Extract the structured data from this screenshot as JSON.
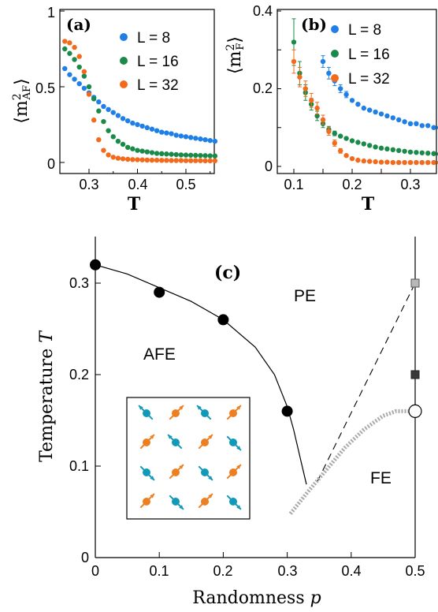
{
  "colors": {
    "blue": "#1e7fe6",
    "green": "#1a8a4a",
    "orange": "#f26a1b",
    "spin_cyan": "#1199b8",
    "spin_orange": "#ee7f21"
  },
  "chart_data": [
    {
      "type": "scatter",
      "panel": "(a)",
      "ylabel": "⟨m²_AF⟩",
      "xlabel": "T",
      "xlim": [
        0.24,
        0.56
      ],
      "ylim": [
        -0.05,
        1.0
      ],
      "xticks": [
        "0.3",
        "0.4",
        "0.5"
      ],
      "yticks": [
        "0",
        "0.5",
        "1"
      ],
      "legend": "top-right",
      "series": [
        {
          "name": "L = 8",
          "color": "#1e7fe6",
          "x": [
            0.25,
            0.26,
            0.27,
            0.28,
            0.29,
            0.3,
            0.31,
            0.32,
            0.33,
            0.34,
            0.35,
            0.36,
            0.37,
            0.38,
            0.39,
            0.4,
            0.41,
            0.42,
            0.43,
            0.44,
            0.45,
            0.46,
            0.47,
            0.48,
            0.49,
            0.5,
            0.51,
            0.52,
            0.53,
            0.54,
            0.55,
            0.56
          ],
          "y": [
            0.62,
            0.58,
            0.55,
            0.52,
            0.49,
            0.46,
            0.43,
            0.4,
            0.37,
            0.35,
            0.33,
            0.31,
            0.29,
            0.275,
            0.26,
            0.25,
            0.24,
            0.23,
            0.22,
            0.21,
            0.2,
            0.195,
            0.19,
            0.18,
            0.175,
            0.17,
            0.165,
            0.16,
            0.155,
            0.15,
            0.145,
            0.14
          ]
        },
        {
          "name": "L = 16",
          "color": "#1a8a4a",
          "x": [
            0.25,
            0.26,
            0.27,
            0.28,
            0.29,
            0.3,
            0.31,
            0.32,
            0.33,
            0.34,
            0.35,
            0.36,
            0.37,
            0.38,
            0.39,
            0.4,
            0.41,
            0.42,
            0.43,
            0.44,
            0.45,
            0.46,
            0.47,
            0.48,
            0.49,
            0.5,
            0.51,
            0.52,
            0.53,
            0.54,
            0.55,
            0.56
          ],
          "y": [
            0.75,
            0.72,
            0.68,
            0.63,
            0.57,
            0.5,
            0.42,
            0.34,
            0.27,
            0.21,
            0.17,
            0.14,
            0.12,
            0.1,
            0.09,
            0.08,
            0.075,
            0.07,
            0.065,
            0.06,
            0.058,
            0.056,
            0.054,
            0.052,
            0.05,
            0.049,
            0.048,
            0.047,
            0.046,
            0.045,
            0.044,
            0.043
          ]
        },
        {
          "name": "L = 32",
          "color": "#f26a1b",
          "x": [
            0.25,
            0.26,
            0.27,
            0.28,
            0.29,
            0.3,
            0.31,
            0.32,
            0.33,
            0.34,
            0.35,
            0.36,
            0.37,
            0.38,
            0.39,
            0.4,
            0.41,
            0.42,
            0.43,
            0.44,
            0.45,
            0.46,
            0.47,
            0.48,
            0.49,
            0.5,
            0.51,
            0.52,
            0.53,
            0.54,
            0.55,
            0.56
          ],
          "y": [
            0.8,
            0.79,
            0.76,
            0.7,
            0.6,
            0.45,
            0.28,
            0.15,
            0.08,
            0.05,
            0.035,
            0.028,
            0.024,
            0.021,
            0.019,
            0.018,
            0.017,
            0.016,
            0.015,
            0.015,
            0.014,
            0.014,
            0.013,
            0.013,
            0.013,
            0.012,
            0.012,
            0.012,
            0.012,
            0.011,
            0.011,
            0.011
          ]
        }
      ]
    },
    {
      "type": "scatter",
      "panel": "(b)",
      "ylabel": "⟨m²_F⟩",
      "xlabel": "T",
      "xlim": [
        0.08,
        0.35
      ],
      "ylim": [
        -0.005,
        0.4
      ],
      "xticks": [
        "0.1",
        "0.2",
        "0.3"
      ],
      "yticks": [
        "0",
        "0.2",
        "0.4"
      ],
      "legend": "top-right",
      "series": [
        {
          "name": "L = 8",
          "color": "#1e7fe6",
          "x": [
            0.15,
            0.16,
            0.17,
            0.18,
            0.19,
            0.2,
            0.21,
            0.22,
            0.23,
            0.24,
            0.25,
            0.26,
            0.27,
            0.28,
            0.29,
            0.3,
            0.31,
            0.32,
            0.33,
            0.34,
            0.35
          ],
          "y": [
            0.27,
            0.24,
            0.22,
            0.2,
            0.185,
            0.17,
            0.16,
            0.15,
            0.145,
            0.14,
            0.135,
            0.13,
            0.125,
            0.12,
            0.115,
            0.11,
            0.11,
            0.105,
            0.105,
            0.1,
            0.1
          ],
          "err": [
            0.015,
            0.015,
            0.012,
            0.01,
            0.008,
            0,
            0,
            0,
            0,
            0,
            0,
            0,
            0,
            0,
            0,
            0,
            0,
            0,
            0,
            0,
            0
          ]
        },
        {
          "name": "L = 16",
          "color": "#1a8a4a",
          "x": [
            0.1,
            0.11,
            0.12,
            0.13,
            0.14,
            0.15,
            0.16,
            0.17,
            0.18,
            0.19,
            0.2,
            0.21,
            0.22,
            0.23,
            0.24,
            0.25,
            0.26,
            0.27,
            0.28,
            0.29,
            0.3,
            0.31,
            0.32,
            0.33,
            0.34,
            0.35
          ],
          "y": [
            0.32,
            0.24,
            0.19,
            0.16,
            0.13,
            0.11,
            0.095,
            0.085,
            0.078,
            0.072,
            0.066,
            0.062,
            0.058,
            0.054,
            0.05,
            0.047,
            0.045,
            0.043,
            0.041,
            0.039,
            0.037,
            0.036,
            0.035,
            0.034,
            0.033,
            0.032
          ],
          "err": [
            0.06,
            0.03,
            0.02,
            0.015,
            0.012,
            0.01,
            0.008,
            0.006,
            0,
            0,
            0,
            0,
            0,
            0,
            0,
            0,
            0,
            0,
            0,
            0,
            0,
            0,
            0,
            0,
            0,
            0
          ]
        },
        {
          "name": "L = 32",
          "color": "#f26a1b",
          "x": [
            0.1,
            0.11,
            0.12,
            0.13,
            0.14,
            0.15,
            0.16,
            0.17,
            0.18,
            0.19,
            0.2,
            0.21,
            0.22,
            0.23,
            0.24,
            0.25,
            0.26,
            0.27,
            0.28,
            0.29,
            0.3,
            0.31,
            0.32,
            0.33,
            0.34,
            0.35
          ],
          "y": [
            0.27,
            0.23,
            0.2,
            0.17,
            0.15,
            0.12,
            0.09,
            0.06,
            0.04,
            0.028,
            0.02,
            0.016,
            0.014,
            0.013,
            0.012,
            0.011,
            0.011,
            0.01,
            0.01,
            0.01,
            0.01,
            0.01,
            0.01,
            0.01,
            0.01,
            0.01
          ],
          "err": [
            0.03,
            0.025,
            0.02,
            0.018,
            0.015,
            0.012,
            0.01,
            0.008,
            0.006,
            0,
            0,
            0,
            0,
            0,
            0,
            0,
            0,
            0,
            0,
            0,
            0,
            0,
            0,
            0,
            0,
            0
          ]
        }
      ]
    },
    {
      "type": "line",
      "panel": "(c)",
      "xlabel": "Randomness p",
      "ylabel": "Temperature T",
      "xlim": [
        0,
        0.5
      ],
      "ylim": [
        0,
        0.35
      ],
      "xticks": [
        "0",
        "0.1",
        "0.2",
        "0.3",
        "0.4",
        "0.5"
      ],
      "yticks": [
        "0",
        "0.1",
        "0.2",
        "0.3"
      ],
      "regions": [
        "PE",
        "AFE",
        "FE"
      ],
      "afe_boundary_points": {
        "x": [
          0,
          0.1,
          0.2,
          0.3
        ],
        "y": [
          0.32,
          0.29,
          0.26,
          0.16
        ]
      },
      "afe_boundary_curve": {
        "x": [
          0,
          0.05,
          0.1,
          0.15,
          0.2,
          0.25,
          0.28,
          0.3,
          0.31,
          0.32,
          0.325,
          0.33
        ],
        "y": [
          0.32,
          0.31,
          0.295,
          0.28,
          0.26,
          0.23,
          0.2,
          0.165,
          0.14,
          0.11,
          0.095,
          0.08
        ]
      },
      "dashed_line": {
        "x": [
          0.33,
          0.5
        ],
        "y": [
          0.08,
          0.3
        ]
      },
      "fe_boundary_dotted": {
        "x": [
          0.305,
          0.33,
          0.36,
          0.39,
          0.42,
          0.45,
          0.47,
          0.49,
          0.5
        ],
        "y": [
          0.048,
          0.07,
          0.095,
          0.12,
          0.14,
          0.155,
          0.16,
          0.16,
          0.16
        ]
      },
      "end_markers": [
        {
          "x": 0.5,
          "y": 0.3,
          "kind": "light-square"
        },
        {
          "x": 0.5,
          "y": 0.2,
          "kind": "dark-square"
        },
        {
          "x": 0.5,
          "y": 0.16,
          "kind": "open-circle"
        }
      ]
    }
  ],
  "panel_a_label": "(a)",
  "panel_b_label": "(b)",
  "panel_c_label": "(c)",
  "a_ylabel_base": "⟨m",
  "a_ylabel_sup": "2",
  "a_ylabel_sub": "AF",
  "a_ylabel_close": "⟩",
  "b_ylabel_base": "⟨m",
  "b_ylabel_sup": "2",
  "b_ylabel_sub": "F",
  "b_ylabel_close": "⟩",
  "a_xlabel": "T",
  "b_xlabel": "T",
  "c_xlabel_text": "Randomness ",
  "c_xlabel_var": "p",
  "c_ylabel_text": "Temperature ",
  "c_ylabel_var": "T",
  "region_pe": "PE",
  "region_afe": "AFE",
  "region_fe": "FE",
  "a_legend": [
    "L = 8",
    "L = 16",
    "L = 32"
  ],
  "b_legend": [
    "L = 8",
    "L = 16",
    "L = 32"
  ],
  "a_xticks": [
    "0.3",
    "0.4",
    "0.5"
  ],
  "a_yticks": [
    "0",
    "0.5",
    "1"
  ],
  "b_xticks": [
    "0.1",
    "0.2",
    "0.3"
  ],
  "b_yticks": [
    "0",
    "0.2",
    "0.4"
  ],
  "c_xticks": [
    "0",
    "0.1",
    "0.2",
    "0.3",
    "0.4",
    "0.5"
  ],
  "c_yticks": [
    "0",
    "0.1",
    "0.2",
    "0.3"
  ]
}
